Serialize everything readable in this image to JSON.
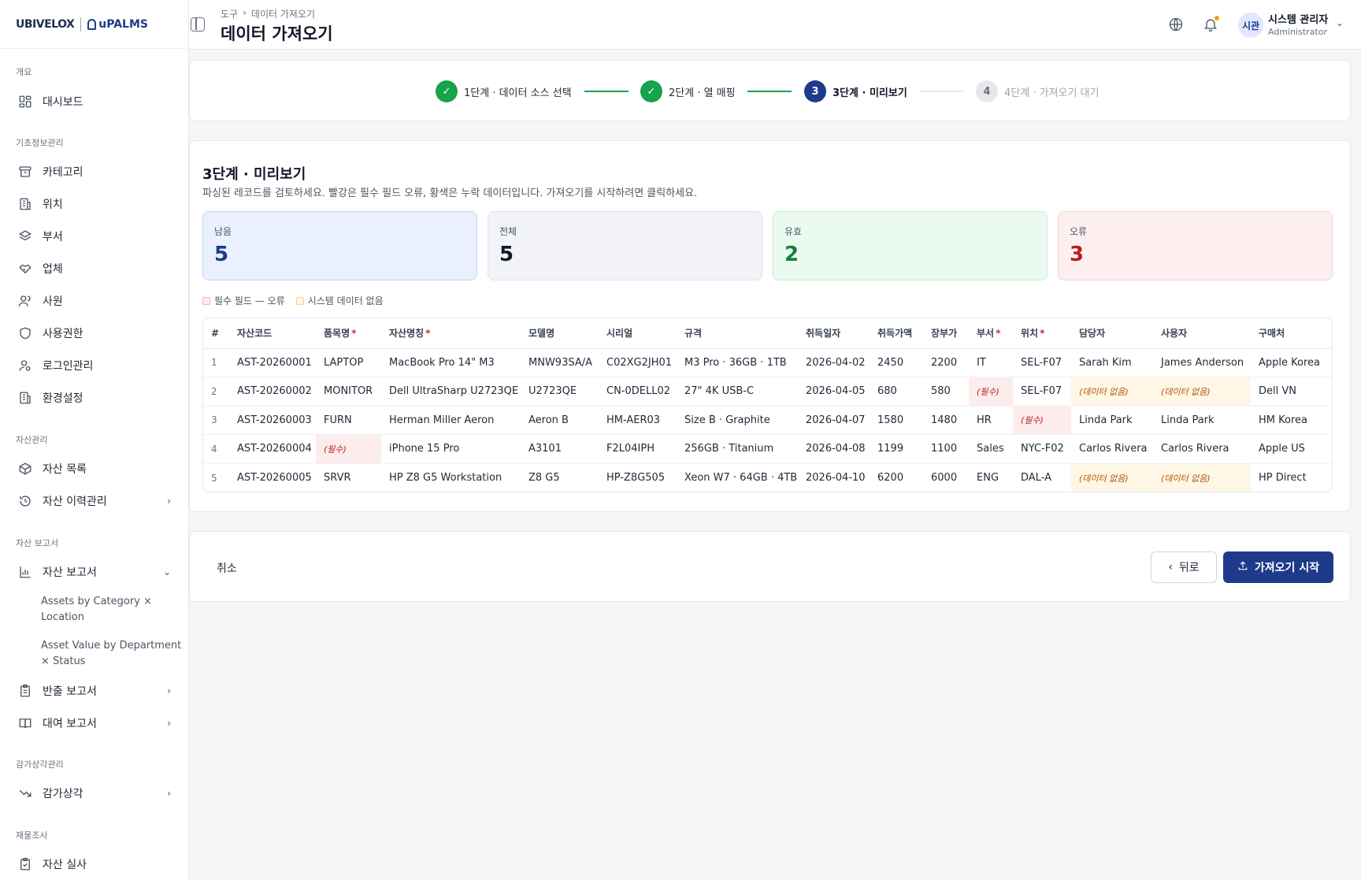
{
  "brand": {
    "left": "UBIVELOX",
    "right": "uPALMS"
  },
  "sidebar": {
    "sections": [
      {
        "label": "개요",
        "top": 84
      },
      {
        "label": "기초정보관리",
        "top": 173
      },
      {
        "label": "자산관리",
        "top": 549
      },
      {
        "label": "자산 보고서",
        "top": 680
      },
      {
        "label": "감가상각관리",
        "top": 961
      },
      {
        "label": "재물조사",
        "top": 1051
      }
    ],
    "items": [
      {
        "label": "대시보드",
        "icon": "dashboard-icon"
      },
      {
        "label": "카테고리",
        "icon": "archive-icon"
      },
      {
        "label": "위치",
        "icon": "building-icon"
      },
      {
        "label": "부서",
        "icon": "layers-icon"
      },
      {
        "label": "업체",
        "icon": "handshake-icon"
      },
      {
        "label": "사원",
        "icon": "users-icon"
      },
      {
        "label": "사용권한",
        "icon": "shield-icon"
      },
      {
        "label": "로그인관리",
        "icon": "user-key-icon"
      },
      {
        "label": "환경설정",
        "icon": "building-icon"
      },
      {
        "label": "자산 목록",
        "icon": "box-icon"
      },
      {
        "label": "자산 이력관리",
        "icon": "history-icon"
      },
      {
        "label": "자산 보고서",
        "icon": "bar-chart-icon"
      },
      {
        "label": "반출 보고서",
        "icon": "clipboard-icon"
      },
      {
        "label": "대여 보고서",
        "icon": "book-icon"
      },
      {
        "label": "감가상각",
        "icon": "trending-down-icon"
      },
      {
        "label": "자산 실사",
        "icon": "clipboard-check-icon"
      }
    ],
    "sub_items": [
      {
        "label": "Assets by Category × Location"
      },
      {
        "label": "Asset Value by Department × Status"
      }
    ]
  },
  "header": {
    "breadcrumb": [
      "도구",
      "데이터 가져오기"
    ],
    "title": "데이터 가져오기",
    "avatar_text": "시관",
    "user_name": "시스템 관리자",
    "user_role": "Administrator"
  },
  "stepper": {
    "steps": [
      {
        "num": "1",
        "label": "1단계 · 데이터 소스 선택",
        "state": "done"
      },
      {
        "num": "2",
        "label": "2단계 · 열 매핑",
        "state": "done"
      },
      {
        "num": "3",
        "label": "3단계 · 미리보기",
        "state": "active"
      },
      {
        "num": "4",
        "label": "4단계 · 가져오기 대기",
        "state": "pending"
      }
    ]
  },
  "preview": {
    "title": "3단계 · 미리보기",
    "description": "파싱된 레코드를 검토하세요. 빨강은 필수 필드 오류, 황색은 누락 데이터입니다. 가져오기를 시작하려면 클릭하세요.",
    "stats": [
      {
        "label": "남음",
        "value": "5",
        "color": "#1e3a8a"
      },
      {
        "label": "전체",
        "value": "5",
        "color": "#111827"
      },
      {
        "label": "유효",
        "value": "2",
        "color": "#15803d"
      },
      {
        "label": "오류",
        "value": "3",
        "color": "#b91c1c"
      }
    ],
    "legend": {
      "error": "필수 필드 — 오류",
      "missing": "시스템 데이터 없음"
    },
    "columns": [
      {
        "label": "#",
        "required": false
      },
      {
        "label": "자산코드",
        "required": false
      },
      {
        "label": "품목명",
        "required": true
      },
      {
        "label": "자산명칭",
        "required": true
      },
      {
        "label": "모델명",
        "required": false
      },
      {
        "label": "시리얼",
        "required": false
      },
      {
        "label": "규격",
        "required": false
      },
      {
        "label": "취득일자",
        "required": false
      },
      {
        "label": "취득가액",
        "required": false
      },
      {
        "label": "장부가",
        "required": false
      },
      {
        "label": "부서",
        "required": true
      },
      {
        "label": "위치",
        "required": true
      },
      {
        "label": "담당자",
        "required": false
      },
      {
        "label": "사용자",
        "required": false
      },
      {
        "label": "구매처",
        "required": false
      }
    ],
    "rows": [
      [
        "1",
        "AST-20260001",
        "LAPTOP",
        "MacBook Pro 14\" M3",
        "MNW93SA/A",
        "C02XG2JH01",
        "M3 Pro · 36GB · 1TB",
        "2026-04-02",
        "2450",
        "2200",
        "IT",
        "SEL-F07",
        "Sarah Kim",
        "James Anderson",
        "Apple Korea"
      ],
      [
        "2",
        "AST-20260002",
        "MONITOR",
        "Dell UltraSharp U2723QE",
        "U2723QE",
        "CN-0DELL02",
        "27\" 4K USB-C",
        "2026-04-05",
        "680",
        "580",
        "(필수)",
        "SEL-F07",
        "(데이터 없음)",
        "(데이터 없음)",
        "Dell VN"
      ],
      [
        "3",
        "AST-20260003",
        "FURN",
        "Herman Miller Aeron",
        "Aeron B",
        "HM-AER03",
        "Size B · Graphite",
        "2026-04-07",
        "1580",
        "1480",
        "HR",
        "(필수)",
        "Linda Park",
        "Linda Park",
        "HM Korea"
      ],
      [
        "4",
        "AST-20260004",
        "(필수)",
        "iPhone 15 Pro",
        "A3101",
        "F2L04IPH",
        "256GB · Titanium",
        "2026-04-08",
        "1199",
        "1100",
        "Sales",
        "NYC-F02",
        "Carlos Rivera",
        "Carlos Rivera",
        "Apple US"
      ],
      [
        "5",
        "AST-20260005",
        "SRVR",
        "HP Z8 G5 Workstation",
        "Z8 G5",
        "HP-Z8G505",
        "Xeon W7 · 64GB · 4TB",
        "2026-04-10",
        "6200",
        "6000",
        "ENG",
        "DAL-A",
        "(데이터 없음)",
        "(데이터 없음)",
        "HP Direct"
      ]
    ]
  },
  "footer": {
    "cancel": "취소",
    "back": "뒤로",
    "start": "가져오기 시작"
  },
  "colors": {
    "primary": "#1e3a8a",
    "success": "#16a34a",
    "error_bg": "#fdecec",
    "missing_bg": "#fef7e6"
  }
}
